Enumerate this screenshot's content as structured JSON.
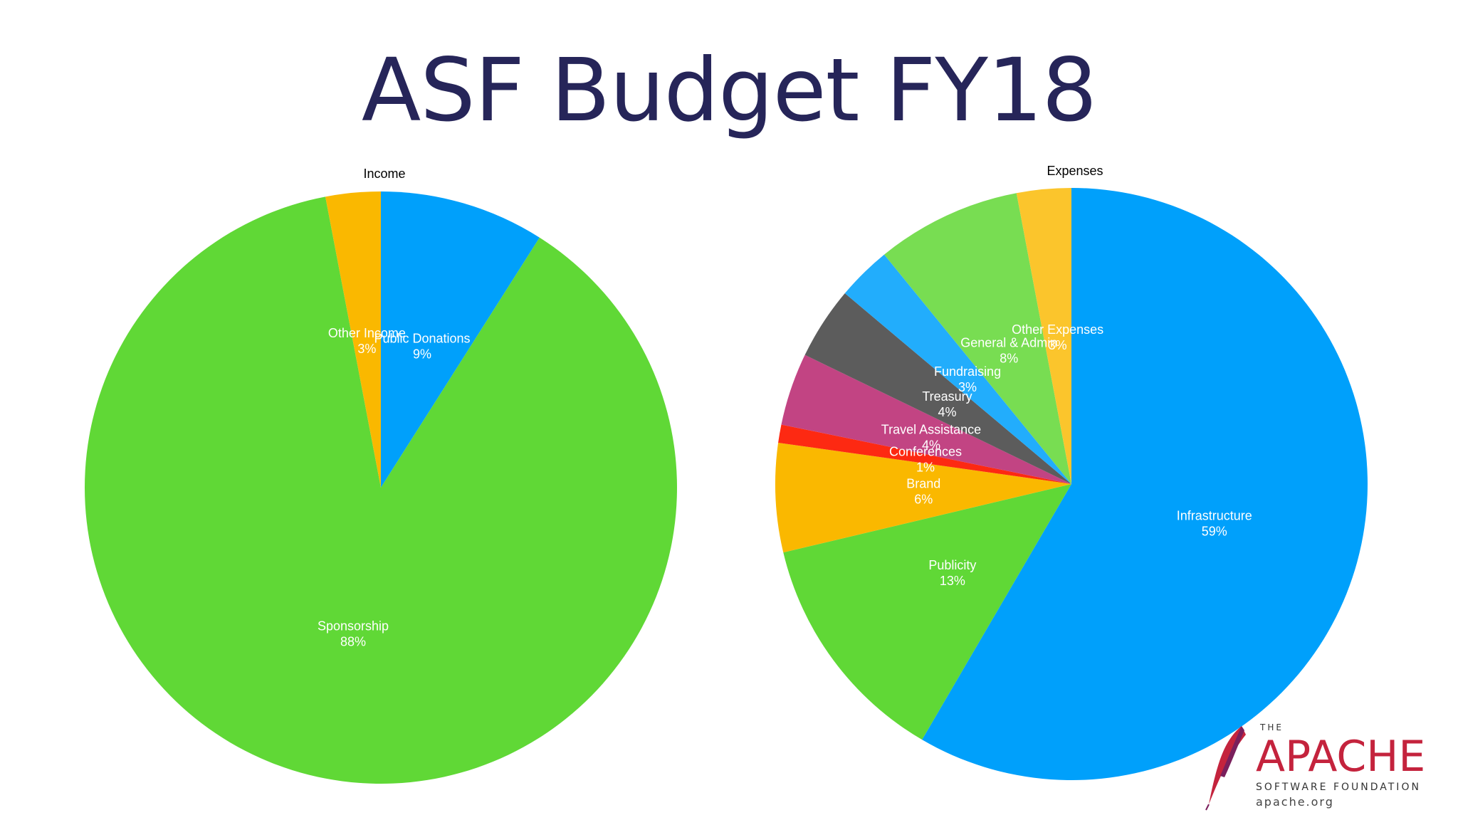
{
  "slide": {
    "title": "ASF Budget FY18"
  },
  "chart_data": [
    {
      "type": "pie",
      "title": "Income",
      "slices": [
        {
          "name": "Public Donations",
          "value": 9,
          "label": "9%",
          "color": "#00a0fb"
        },
        {
          "name": "Sponsorship",
          "value": 88,
          "label": "88%",
          "color": "#60d836"
        },
        {
          "name": "Other Income",
          "value": 3,
          "label": "3%",
          "color": "#fab800"
        }
      ]
    },
    {
      "type": "pie",
      "title": "Expenses",
      "slices": [
        {
          "name": "Infrastructure",
          "value": 59,
          "label": "59%",
          "color": "#00a0fb"
        },
        {
          "name": "Publicity",
          "value": 13,
          "label": "13%",
          "color": "#60d836"
        },
        {
          "name": "Brand",
          "value": 6,
          "label": "6%",
          "color": "#fab800"
        },
        {
          "name": "Conferences",
          "value": 1,
          "label": "1%",
          "color": "#fd2912"
        },
        {
          "name": "Travel Assistance",
          "value": 4,
          "label": "4%",
          "color": "#c24483"
        },
        {
          "name": "Treasury",
          "value": 4,
          "label": "4%",
          "color": "#5c5c5c"
        },
        {
          "name": "Fundraising",
          "value": 3,
          "label": "3%",
          "color": "#22adfc"
        },
        {
          "name": "General & Admin",
          "value": 8,
          "label": "8%",
          "color": "#78dd52"
        },
        {
          "name": "Other Expenses",
          "value": 3,
          "label": "3%",
          "color": "#fbc52c"
        }
      ]
    }
  ],
  "logo": {
    "the": "THE",
    "name": "APACHE",
    "subtitle": "SOFTWARE FOUNDATION",
    "url": "apache.org"
  }
}
